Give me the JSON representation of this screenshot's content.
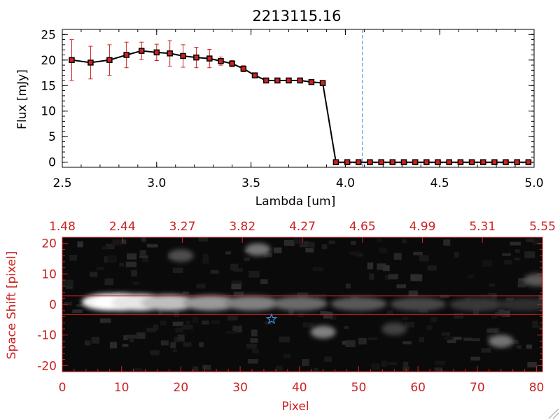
{
  "chart_data": [
    {
      "type": "line",
      "title": "2213115.16",
      "xlabel": "Lambda [um]",
      "ylabel": "Flux [mJy]",
      "xlim": [
        2.5,
        5.0
      ],
      "ylim": [
        -1,
        26
      ],
      "x_ticks": [
        "2.5",
        "3.0",
        "3.5",
        "4.0",
        "4.5",
        "5.0"
      ],
      "y_ticks": [
        "0",
        "5",
        "10",
        "15",
        "20",
        "25"
      ],
      "grid": false,
      "vertical_marker": {
        "x": 4.09,
        "color": "#4a90d9",
        "style": "dashed"
      },
      "series": [
        {
          "line_color": "#000000",
          "marker_color": "#cc2222",
          "error_color": "#cc2222",
          "x": [
            2.55,
            2.65,
            2.75,
            2.84,
            2.92,
            3.0,
            3.07,
            3.14,
            3.21,
            3.28,
            3.34,
            3.4,
            3.46,
            3.52,
            3.58,
            3.64,
            3.7,
            3.76,
            3.82,
            3.88,
            3.95,
            4.01,
            4.07,
            4.13,
            4.19,
            4.25,
            4.31,
            4.37,
            4.43,
            4.49,
            4.55,
            4.61,
            4.67,
            4.73,
            4.79,
            4.85,
            4.91,
            4.97
          ],
          "y": [
            20.0,
            19.5,
            20.0,
            21.0,
            21.8,
            21.5,
            21.3,
            20.8,
            20.5,
            20.3,
            19.8,
            19.3,
            18.3,
            17.0,
            16.0,
            16.0,
            16.0,
            16.0,
            15.7,
            15.5,
            0,
            0,
            0,
            0,
            0,
            0,
            0,
            0,
            0,
            0,
            0,
            0,
            0,
            0,
            0,
            0,
            0,
            0
          ],
          "err": [
            4.0,
            3.2,
            3.0,
            2.5,
            1.7,
            1.6,
            2.5,
            2.2,
            2.0,
            1.8,
            0.8,
            0.6,
            0.6,
            0.5,
            0.4,
            0.4,
            0.4,
            0.4,
            0.4,
            0.4,
            0,
            0,
            0,
            0,
            0,
            0,
            0,
            0,
            0,
            0,
            0,
            0,
            0,
            0,
            0,
            0,
            0,
            0
          ]
        }
      ]
    },
    {
      "type": "heatmap",
      "xlabel": "Pixel",
      "ylabel": "Space Shift [pixel]",
      "xlim": [
        0,
        81
      ],
      "ylim": [
        -22,
        22
      ],
      "x_ticks": [
        "0",
        "10",
        "20",
        "30",
        "40",
        "50",
        "60",
        "70",
        "80"
      ],
      "y_ticks": [
        "-20",
        "-10",
        "0",
        "10",
        "20"
      ],
      "top_axis_ticks": [
        "1.48",
        "2.44",
        "3.27",
        "3.82",
        "4.27",
        "4.65",
        "4.99",
        "5.31",
        "5.55"
      ],
      "axis_color": "#cc2222",
      "colormap": "grayscale",
      "aperture_lines": [
        2.8,
        -3.3
      ],
      "marker": {
        "symbol": "star",
        "x": 35.3,
        "y": -4.8,
        "color": "#3a8fe0"
      },
      "trace": [
        {
          "x": 8,
          "y": 0.8,
          "intensity": 0.95
        },
        {
          "x": 10,
          "y": 0.8,
          "intensity": 1.0
        },
        {
          "x": 13,
          "y": 0.7,
          "intensity": 0.9
        },
        {
          "x": 18,
          "y": 0.6,
          "intensity": 0.75
        },
        {
          "x": 25,
          "y": 0.5,
          "intensity": 0.6
        },
        {
          "x": 32,
          "y": 0.4,
          "intensity": 0.5
        },
        {
          "x": 40,
          "y": 0.3,
          "intensity": 0.42
        },
        {
          "x": 50,
          "y": 0.2,
          "intensity": 0.35
        },
        {
          "x": 60,
          "y": 0.1,
          "intensity": 0.28
        },
        {
          "x": 70,
          "y": 0.0,
          "intensity": 0.22
        },
        {
          "x": 78,
          "y": 0.0,
          "intensity": 0.18
        }
      ],
      "blobs": [
        {
          "x": 33,
          "y": 18,
          "intensity": 0.45
        },
        {
          "x": 20,
          "y": 16,
          "intensity": 0.3
        },
        {
          "x": 44,
          "y": -9,
          "intensity": 0.5
        },
        {
          "x": 74,
          "y": -12,
          "intensity": 0.45
        },
        {
          "x": 80,
          "y": 8,
          "intensity": 0.35
        },
        {
          "x": 56,
          "y": -8,
          "intensity": 0.25
        }
      ]
    }
  ]
}
